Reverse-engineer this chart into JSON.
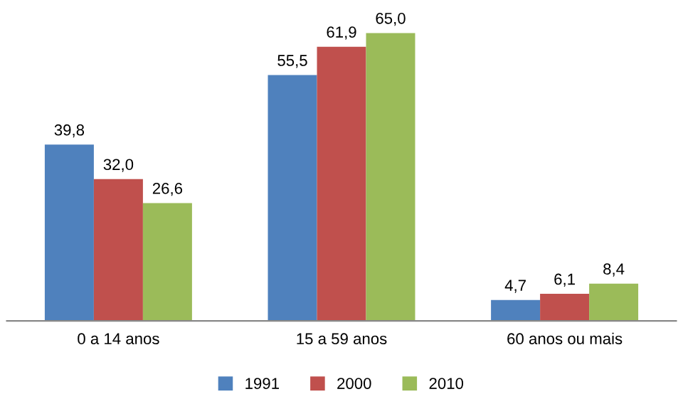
{
  "chart_data": {
    "type": "bar",
    "categories": [
      "0 a 14 anos",
      "15 a 59 anos",
      "60 anos ou mais"
    ],
    "series": [
      {
        "name": "1991",
        "color": "#4f81bd",
        "values": [
          39.8,
          55.5,
          4.7
        ],
        "value_labels": [
          "39,8",
          "55,5",
          "4,7"
        ]
      },
      {
        "name": "2000",
        "color": "#c0504d",
        "values": [
          32.0,
          61.9,
          6.1
        ],
        "value_labels": [
          "32,0",
          "61,9",
          "6,1"
        ]
      },
      {
        "name": "2010",
        "color": "#9bbb59",
        "values": [
          26.6,
          65.0,
          8.4
        ],
        "value_labels": [
          "26,6",
          "65,0",
          "8,4"
        ]
      }
    ],
    "legend": "bottom",
    "grid": false
  }
}
